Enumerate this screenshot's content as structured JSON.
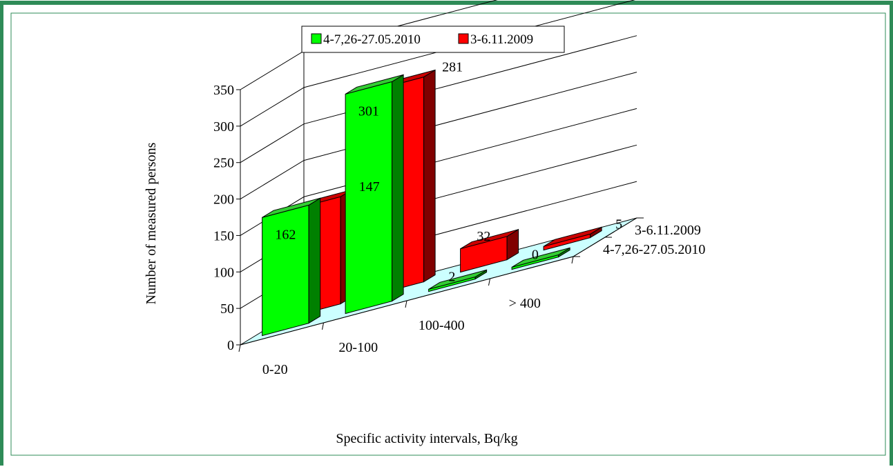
{
  "colors": {
    "frame": "#2e8b57",
    "floor": "#ccffff",
    "green_front": "#00ff00",
    "green_side": "#008000",
    "green_top": "#33cc33",
    "red_front": "#ff0000",
    "red_side": "#800000",
    "red_top": "#cc0000"
  },
  "chart_data": {
    "type": "bar",
    "variant": "3d-clustered-depth",
    "title": "",
    "xlabel": "Specific activity intervals, Bq/kg",
    "ylabel": "Number of measured persons",
    "ylim": [
      0,
      350
    ],
    "yticks": [
      "0",
      "50",
      "100",
      "150",
      "200",
      "250",
      "300",
      "350"
    ],
    "categories": [
      "0-20",
      "20-100",
      "100-400",
      "> 400"
    ],
    "depth_labels": [
      "3-6.11.2009",
      "4-7,26-27.05.2010"
    ],
    "legend_position": "top",
    "grid": true,
    "series": [
      {
        "name": "4-7,26-27.05.2010",
        "color": "green",
        "values": [
          162,
          301,
          2,
          0
        ]
      },
      {
        "name": "3-6.11.2009",
        "color": "red",
        "values": [
          147,
          281,
          32,
          5
        ]
      }
    ]
  }
}
